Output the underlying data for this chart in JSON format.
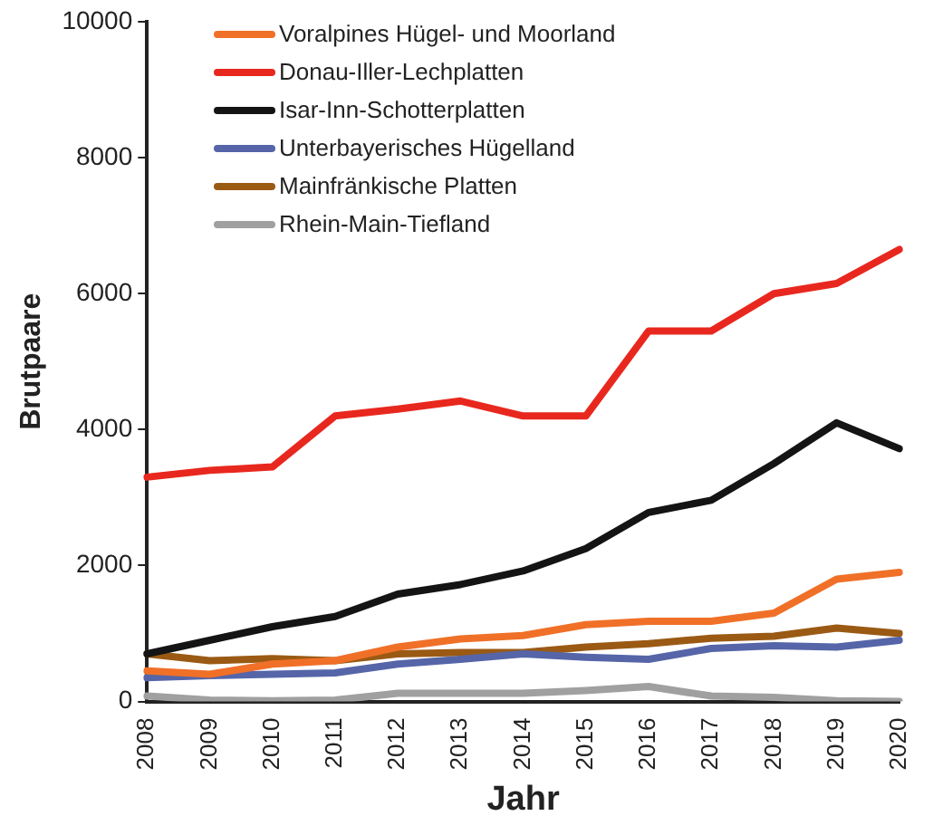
{
  "chart_data": {
    "type": "line",
    "xlabel": "Jahr",
    "ylabel": "Brutpaare",
    "categories": [
      "2008",
      "2009",
      "2010",
      "2011",
      "2012",
      "2013",
      "2014",
      "2015",
      "2016",
      "2017",
      "2018",
      "2019",
      "2020"
    ],
    "ylim": [
      0,
      10000
    ],
    "yticks": [
      0,
      2000,
      4000,
      6000,
      8000,
      10000
    ],
    "grid": false,
    "legend": "top left",
    "marker": "none",
    "line_style": "solid",
    "series": [
      {
        "name": "Voralpines Hügel- und Moorland",
        "color": "#f07028",
        "values": [
          450,
          400,
          550,
          600,
          800,
          920,
          970,
          1130,
          1180,
          1180,
          1300,
          1800,
          1900
        ]
      },
      {
        "name": "Donau-Iller-Lechplatten",
        "color": "#e8281e",
        "values": [
          3300,
          3400,
          3450,
          4200,
          4300,
          4420,
          4200,
          4200,
          5450,
          5450,
          6000,
          6150,
          6650
        ]
      },
      {
        "name": "Isar-Inn-Schotterplatten",
        "color": "#141414",
        "values": [
          700,
          900,
          1100,
          1250,
          1580,
          1720,
          1920,
          2250,
          2780,
          2960,
          3500,
          4100,
          3720
        ]
      },
      {
        "name": "Unterbayerisches Hügelland",
        "color": "#5565a8",
        "values": [
          350,
          380,
          400,
          420,
          550,
          620,
          700,
          650,
          620,
          780,
          820,
          800,
          900
        ]
      },
      {
        "name": "Mainfränkische Platten",
        "color": "#9a5a14",
        "values": [
          700,
          600,
          630,
          600,
          700,
          720,
          720,
          800,
          850,
          930,
          960,
          1080,
          1000
        ]
      },
      {
        "name": "Rhein-Main-Tiefland",
        "color": "#a0a0a0",
        "values": [
          80,
          20,
          10,
          20,
          120,
          120,
          120,
          160,
          220,
          80,
          60,
          10,
          0
        ]
      }
    ]
  }
}
